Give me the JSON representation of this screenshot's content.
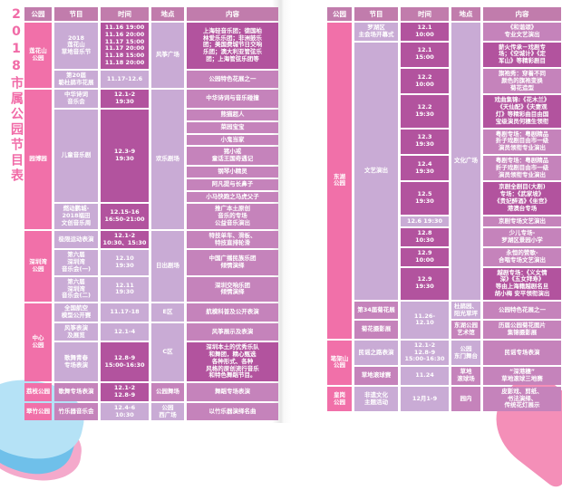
{
  "page_title": "2018市属公园节目表",
  "colors": {
    "title": "#f16ba7",
    "header_cell": "#c17cac",
    "park_cell": "#f170a9",
    "light_cell": "#c9abd5",
    "medium_cell": "#c583bb",
    "dark_cell": "#b2539e",
    "text": "#ffffff"
  },
  "columns": [
    "公园",
    "节目",
    "时间",
    "地点",
    "内容"
  ],
  "tables": [
    {
      "id": "left",
      "rows": [
        [
          {
            "k": "header",
            "t": "公园",
            "tone": "H"
          },
          {
            "k": "header",
            "t": "节目",
            "tone": "H"
          },
          {
            "k": "header",
            "t": "时间",
            "tone": "H"
          },
          {
            "k": "header",
            "t": "地点",
            "tone": "H"
          },
          {
            "k": "header",
            "t": "内容",
            "tone": "H"
          }
        ],
        [
          {
            "k": "park",
            "t": "莲花山\n公园",
            "tone": "P",
            "rs": 2
          },
          {
            "k": "program",
            "t": "2018\n莲花山\n草地音乐节",
            "tone": "L"
          },
          {
            "k": "time",
            "t": "11.16 19:00\n11.16 20:00\n11.17 15:00\n11.17 20:00\n11.18 15:00\n11.18 20:00",
            "tone": "D"
          },
          {
            "k": "venue",
            "t": "风筝广场",
            "tone": "L",
            "rs": 2
          },
          {
            "k": "content",
            "t": "上海轻音乐团；德国柏\n林爱乐乐团；非洲鼓乐\n团；美国费城节日交响\n乐团；澳大利亚管弦乐\n团；上海管弦乐团等",
            "tone": "D"
          }
        ],
        [
          {
            "k": "program",
            "t": "第20届\n簕杜鹃市花展",
            "tone": "L"
          },
          {
            "k": "time",
            "t": "11.17-12.6",
            "tone": "L"
          },
          {
            "k": "content",
            "t": "公园特色花展之一",
            "tone": "M"
          }
        ],
        [
          {
            "k": "park",
            "t": "园博园",
            "tone": "P",
            "rs": 9
          },
          {
            "k": "program",
            "t": "中华诗词\n音乐会",
            "tone": "L"
          },
          {
            "k": "time",
            "t": "12.1-2\n19:30",
            "tone": "D"
          },
          {
            "k": "venue",
            "t": "欢乐剧场",
            "tone": "L",
            "rs": 9
          },
          {
            "k": "content",
            "t": "中华诗词与音乐碰撞",
            "tone": "M"
          }
        ],
        [
          {
            "k": "program",
            "t": "儿童音乐剧",
            "tone": "L",
            "rs": 7
          },
          {
            "k": "time",
            "t": "12.3-9\n19:30",
            "tone": "D",
            "rs": 7
          },
          {
            "k": "content",
            "t": "熊猫超人",
            "tone": "M"
          }
        ],
        [
          {
            "k": "content",
            "t": "菜园宝宝",
            "tone": "M"
          }
        ],
        [
          {
            "k": "content",
            "t": "小鬼当家",
            "tone": "M"
          }
        ],
        [
          {
            "k": "content",
            "t": "猪小戒\n童话王国奇遇记",
            "tone": "M"
          }
        ],
        [
          {
            "k": "content",
            "t": "钢琴小精灵",
            "tone": "M"
          }
        ],
        [
          {
            "k": "content",
            "t": "阿凡提与长鼻子",
            "tone": "M"
          }
        ],
        [
          {
            "k": "content",
            "t": "小马快跑之马虎父子",
            "tone": "M"
          }
        ],
        [
          {
            "k": "program",
            "t": "燃动鹏城-\n2018福田\n文创音乐周",
            "tone": "L"
          },
          {
            "k": "time",
            "t": "12.15-16\n16:50-21:00",
            "tone": "D"
          },
          {
            "k": "content",
            "t": "推广本土原创\n音乐的专场\n公益音乐演出",
            "tone": "M"
          }
        ],
        [
          {
            "k": "park",
            "t": "深圳湾\n公园",
            "tone": "P",
            "rs": 3
          },
          {
            "k": "program",
            "t": "极限运动表演",
            "tone": "L"
          },
          {
            "k": "time",
            "t": "12.1-2\n10:30、15:30",
            "tone": "D"
          },
          {
            "k": "venue",
            "t": "日出剧场",
            "tone": "L",
            "rs": 3
          },
          {
            "k": "content",
            "t": "特技单车、滑板、\n特技直排轮滑",
            "tone": "M"
          }
        ],
        [
          {
            "k": "program",
            "t": "第六届\n深圳湾\n音乐会(一)",
            "tone": "L"
          },
          {
            "k": "time",
            "t": "12.10\n19:30",
            "tone": "L"
          },
          {
            "k": "content",
            "t": "中国广播民族乐团\n倾情演绎",
            "tone": "M"
          }
        ],
        [
          {
            "k": "program",
            "t": "第六届\n深圳湾\n音乐会(二)",
            "tone": "L"
          },
          {
            "k": "time",
            "t": "12.11\n19:30",
            "tone": "L"
          },
          {
            "k": "content",
            "t": "深圳交响乐团\n倾情演绎",
            "tone": "M"
          }
        ],
        [
          {
            "k": "park",
            "t": "中心\n公园",
            "tone": "P",
            "rs": 3
          },
          {
            "k": "program",
            "t": "全国航空\n模型公开赛",
            "tone": "L"
          },
          {
            "k": "time",
            "t": "11.17-18",
            "tone": "L"
          },
          {
            "k": "venue",
            "t": "E区",
            "tone": "L"
          },
          {
            "k": "content",
            "t": "航模科普及公开表演",
            "tone": "M"
          }
        ],
        [
          {
            "k": "program",
            "t": "风筝表演\n及展览",
            "tone": "L"
          },
          {
            "k": "time",
            "t": "12.1-4",
            "tone": "L"
          },
          {
            "k": "venue",
            "t": "C区",
            "tone": "L",
            "rs": 2
          },
          {
            "k": "content",
            "t": "风筝展示及表演",
            "tone": "M"
          }
        ],
        [
          {
            "k": "program",
            "t": "歌舞青春\n专场表演",
            "tone": "L"
          },
          {
            "k": "time",
            "t": "12.8-9\n15:00-16:30",
            "tone": "D"
          },
          {
            "k": "content",
            "t": "深圳本土的优秀乐队\n和舞团，精心甄选\n各种形式、各种\n风格的原创流行音乐\n和特色舞蹈节目。",
            "tone": "D"
          }
        ],
        [
          {
            "k": "park",
            "t": "荔枝公园",
            "tone": "P"
          },
          {
            "k": "program",
            "t": "歌舞专场表演",
            "tone": "M"
          },
          {
            "k": "time",
            "t": "12.1-2\n12.8-9",
            "tone": "D"
          },
          {
            "k": "venue",
            "t": "公园舞场",
            "tone": "M"
          },
          {
            "k": "content",
            "t": "舞蹈专场表演",
            "tone": "M"
          }
        ],
        [
          {
            "k": "park",
            "t": "翠竹公园",
            "tone": "P"
          },
          {
            "k": "program",
            "t": "竹乐器音乐会",
            "tone": "M"
          },
          {
            "k": "time",
            "t": "12.4-6\n10:30",
            "tone": "L"
          },
          {
            "k": "venue",
            "t": "公园\n西广场",
            "tone": "L"
          },
          {
            "k": "content",
            "t": "以竹乐器演绎名曲",
            "tone": "M"
          }
        ]
      ]
    },
    {
      "id": "right",
      "rows": [
        [
          {
            "k": "header",
            "t": "公园",
            "tone": "H"
          },
          {
            "k": "header",
            "t": "节目",
            "tone": "H"
          },
          {
            "k": "header",
            "t": "时间",
            "tone": "H"
          },
          {
            "k": "header",
            "t": "地点",
            "tone": "H"
          },
          {
            "k": "header",
            "t": "内容",
            "tone": "H"
          }
        ],
        [
          {
            "k": "park",
            "t": "东湖\n公园",
            "tone": "P",
            "rs": 13
          },
          {
            "k": "program",
            "t": "罗湖区\n主会场开幕式",
            "tone": "L"
          },
          {
            "k": "time",
            "t": "12.1\n10:00",
            "tone": "D"
          },
          {
            "k": "venue",
            "t": "文化广场",
            "tone": "L",
            "rs": 11
          },
          {
            "k": "content",
            "t": "《和谐颂》\n专业文艺演出",
            "tone": "M"
          }
        ],
        [
          {
            "k": "program",
            "t": "文艺演出",
            "tone": "L",
            "rs": 10
          },
          {
            "k": "time",
            "t": "12.1\n15:00",
            "tone": "D"
          },
          {
            "k": "content",
            "t": "薪火传承－戏剧专\n场；《空城计》《定\n军山》等精彩剧目",
            "tone": "D"
          }
        ],
        [
          {
            "k": "time",
            "t": "12.2\n10:00",
            "tone": "D"
          },
          {
            "k": "content",
            "t": "旗袍秀：穿着不同\n颜色的旗袍变换\n菊花造型",
            "tone": "M"
          }
        ],
        [
          {
            "k": "time",
            "t": "12.2\n19:30",
            "tone": "D"
          },
          {
            "k": "content",
            "t": "戏曲集锦:《花木兰》\n《天仙配》《夫妻观\n灯》等精彩曲目由国\n宝级演员何穗生领衔",
            "tone": "D"
          }
        ],
        [
          {
            "k": "time",
            "t": "12.3\n19:30",
            "tone": "D"
          },
          {
            "k": "content",
            "t": "粤剧专场：粤剧精品\n折子戏剧目由市一级\n演员领衔专业演出",
            "tone": "M"
          }
        ],
        [
          {
            "k": "time",
            "t": "12.4\n19:30",
            "tone": "D"
          },
          {
            "k": "content",
            "t": "粤剧专场：粤剧精品\n折子戏剧目由市一级\n演员领衔专业演出",
            "tone": "M"
          }
        ],
        [
          {
            "k": "time",
            "t": "12.5\n19:30",
            "tone": "D"
          },
          {
            "k": "content",
            "t": "京剧全剧目(大剧)\n专场：《武家坡》\n《贵妃醉酒》《坐宫》\n港澳台专场",
            "tone": "D"
          }
        ],
        [
          {
            "k": "time",
            "t": "12.6 19:30",
            "tone": "L"
          },
          {
            "k": "content",
            "t": "京剧专场文艺演出",
            "tone": "M"
          }
        ],
        [
          {
            "k": "time",
            "t": "12.8\n10:30",
            "tone": "D"
          },
          {
            "k": "content",
            "t": "少儿专场-\n罗湖区景园小学",
            "tone": "M"
          }
        ],
        [
          {
            "k": "time",
            "t": "12.9\n10:00",
            "tone": "D"
          },
          {
            "k": "content",
            "t": "永恒的赞歌-\n合唱专场文艺演出",
            "tone": "M"
          }
        ],
        [
          {
            "k": "time",
            "t": "12.9\n19:30",
            "tone": "D"
          },
          {
            "k": "content",
            "t": "越剧专场：《义女情\n深》《五女拜寿》\n等由上海籍越剧名旦\n胡小梅 安平领衔演出",
            "tone": "D"
          }
        ],
        [
          {
            "k": "program",
            "t": "第34届菊花展",
            "tone": "M"
          },
          {
            "k": "time",
            "t": "11.26-\n12.10",
            "tone": "L",
            "rs": 2
          },
          {
            "k": "venue",
            "t": "杜鹃园、\n阳光草坪",
            "tone": "L"
          },
          {
            "k": "content",
            "t": "公园特色花展之一",
            "tone": "M"
          }
        ],
        [
          {
            "k": "program",
            "t": "菊花摄影展",
            "tone": "M"
          },
          {
            "k": "venue",
            "t": "东湖公园\n艺术馆",
            "tone": "M"
          },
          {
            "k": "content",
            "t": "历届公园菊花图片\n集锦摄影展",
            "tone": "M"
          }
        ],
        [
          {
            "k": "park",
            "t": "笔架山\n公园",
            "tone": "P",
            "rs": 2
          },
          {
            "k": "program",
            "t": "民谣之路表演",
            "tone": "L"
          },
          {
            "k": "time",
            "t": "12.1-2\n12.8-9\n15:00-16:30",
            "tone": "L"
          },
          {
            "k": "venue",
            "t": "公园\n东门舞台",
            "tone": "L"
          },
          {
            "k": "content",
            "t": "民谣专场表演",
            "tone": "M"
          }
        ],
        [
          {
            "k": "program",
            "t": "草地滚球赛",
            "tone": "M"
          },
          {
            "k": "time",
            "t": "11.24",
            "tone": "L"
          },
          {
            "k": "venue",
            "t": "草地\n滚球场",
            "tone": "M"
          },
          {
            "k": "content",
            "t": "“深港穗”\n草地滚球三地赛",
            "tone": "M"
          }
        ],
        [
          {
            "k": "park",
            "t": "皇岗\n公园",
            "tone": "P"
          },
          {
            "k": "program",
            "t": "非遗文化\n主题活动",
            "tone": "L"
          },
          {
            "k": "time",
            "t": "12月1-9",
            "tone": "L"
          },
          {
            "k": "venue",
            "t": "园内",
            "tone": "M"
          },
          {
            "k": "content",
            "t": "皮影戏、剪纸、\n书法演绎、\n传统花灯展示",
            "tone": "M"
          }
        ]
      ]
    }
  ]
}
